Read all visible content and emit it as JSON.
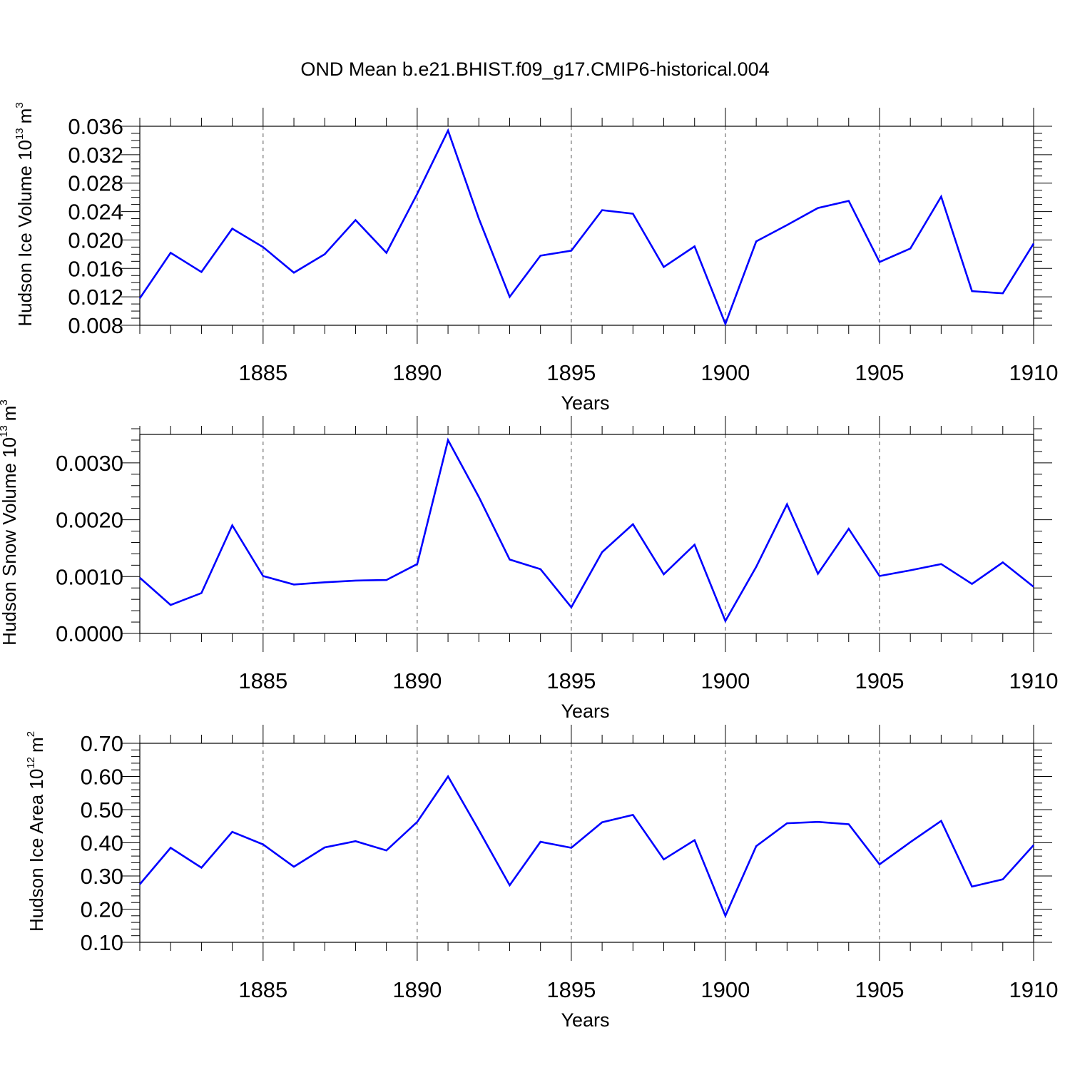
{
  "title": "OND Mean b.e21.BHIST.f09_g17.CMIP6-historical.004",
  "chart_data": [
    {
      "type": "line",
      "title": "OND Mean b.e21.BHIST.f09_g17.CMIP6-historical.004",
      "xlabel": "Years",
      "ylabel": "Hudson Ice Volume 10",
      "ylabel_exp": "13",
      "ylabel_unit": "m",
      "ylabel_unit_exp": "3",
      "xlim": [
        1881,
        1910
      ],
      "ylim": [
        0.008,
        0.036
      ],
      "ytick_step": 0.004,
      "ytick_decimals": 3,
      "yminor_per_major": 4,
      "xticks": [
        1885,
        1890,
        1895,
        1900,
        1905,
        1910
      ],
      "grid": "x-dashed",
      "color": "#0000ff",
      "series": [
        {
          "x": [
            1881,
            1882,
            1883,
            1884,
            1885,
            1886,
            1887,
            1888,
            1889,
            1890,
            1891,
            1892,
            1893,
            1894,
            1895,
            1896,
            1897,
            1898,
            1899,
            1900,
            1901,
            1902,
            1903,
            1904,
            1905,
            1906,
            1907,
            1908,
            1909,
            1910
          ],
          "values": [
            0.0118,
            0.0182,
            0.0155,
            0.0216,
            0.019,
            0.0154,
            0.018,
            0.0228,
            0.0182,
            0.0265,
            0.0354,
            0.023,
            0.012,
            0.0178,
            0.0185,
            0.0242,
            0.0237,
            0.0162,
            0.0191,
            0.0082,
            0.0198,
            0.0221,
            0.0245,
            0.0255,
            0.0169,
            0.0188,
            0.0261,
            0.0128,
            0.0125,
            0.0195
          ]
        }
      ]
    },
    {
      "type": "line",
      "xlabel": "Years",
      "ylabel": "Hudson Snow Volume 10",
      "ylabel_exp": "13",
      "ylabel_unit": "m",
      "ylabel_unit_exp": "3",
      "xlim": [
        1881,
        1910
      ],
      "ylim": [
        0.0,
        0.0035
      ],
      "ytick_step": 0.001,
      "ytick_decimals": 4,
      "yminor_per_major": 5,
      "xticks": [
        1885,
        1890,
        1895,
        1900,
        1905,
        1910
      ],
      "grid": "x-dashed",
      "color": "#0000ff",
      "series": [
        {
          "x": [
            1881,
            1882,
            1883,
            1884,
            1885,
            1886,
            1887,
            1888,
            1889,
            1890,
            1891,
            1892,
            1893,
            1894,
            1895,
            1896,
            1897,
            1898,
            1899,
            1900,
            1901,
            1902,
            1903,
            1904,
            1905,
            1906,
            1907,
            1908,
            1909,
            1910
          ],
          "values": [
            0.00098,
            0.0005,
            0.00071,
            0.0019,
            0.00101,
            0.00086,
            0.0009,
            0.00093,
            0.00094,
            0.00122,
            0.0034,
            0.0024,
            0.0013,
            0.00113,
            0.00046,
            0.00143,
            0.00192,
            0.00104,
            0.00156,
            0.00022,
            0.00117,
            0.00227,
            0.00105,
            0.00184,
            0.00101,
            0.00111,
            0.00122,
            0.00087,
            0.00125,
            0.00082
          ]
        }
      ]
    },
    {
      "type": "line",
      "xlabel": "Years",
      "ylabel": "Hudson Ice Area 10",
      "ylabel_exp": "12",
      "ylabel_unit": "m",
      "ylabel_unit_exp": "2",
      "xlim": [
        1881,
        1910
      ],
      "ylim": [
        0.1,
        0.7
      ],
      "ytick_step": 0.1,
      "ytick_decimals": 2,
      "yminor_per_major": 5,
      "xticks": [
        1885,
        1890,
        1895,
        1900,
        1905,
        1910
      ],
      "grid": "x-dashed",
      "color": "#0000ff",
      "series": [
        {
          "x": [
            1881,
            1882,
            1883,
            1884,
            1885,
            1886,
            1887,
            1888,
            1889,
            1890,
            1891,
            1892,
            1893,
            1894,
            1895,
            1896,
            1897,
            1898,
            1899,
            1900,
            1901,
            1902,
            1903,
            1904,
            1905,
            1906,
            1907,
            1908,
            1909,
            1910
          ],
          "values": [
            0.275,
            0.385,
            0.325,
            0.433,
            0.395,
            0.328,
            0.386,
            0.405,
            0.377,
            0.463,
            0.6,
            0.438,
            0.272,
            0.403,
            0.385,
            0.462,
            0.484,
            0.35,
            0.408,
            0.18,
            0.39,
            0.459,
            0.463,
            0.456,
            0.335,
            0.402,
            0.466,
            0.268,
            0.29,
            0.393
          ]
        }
      ]
    }
  ]
}
